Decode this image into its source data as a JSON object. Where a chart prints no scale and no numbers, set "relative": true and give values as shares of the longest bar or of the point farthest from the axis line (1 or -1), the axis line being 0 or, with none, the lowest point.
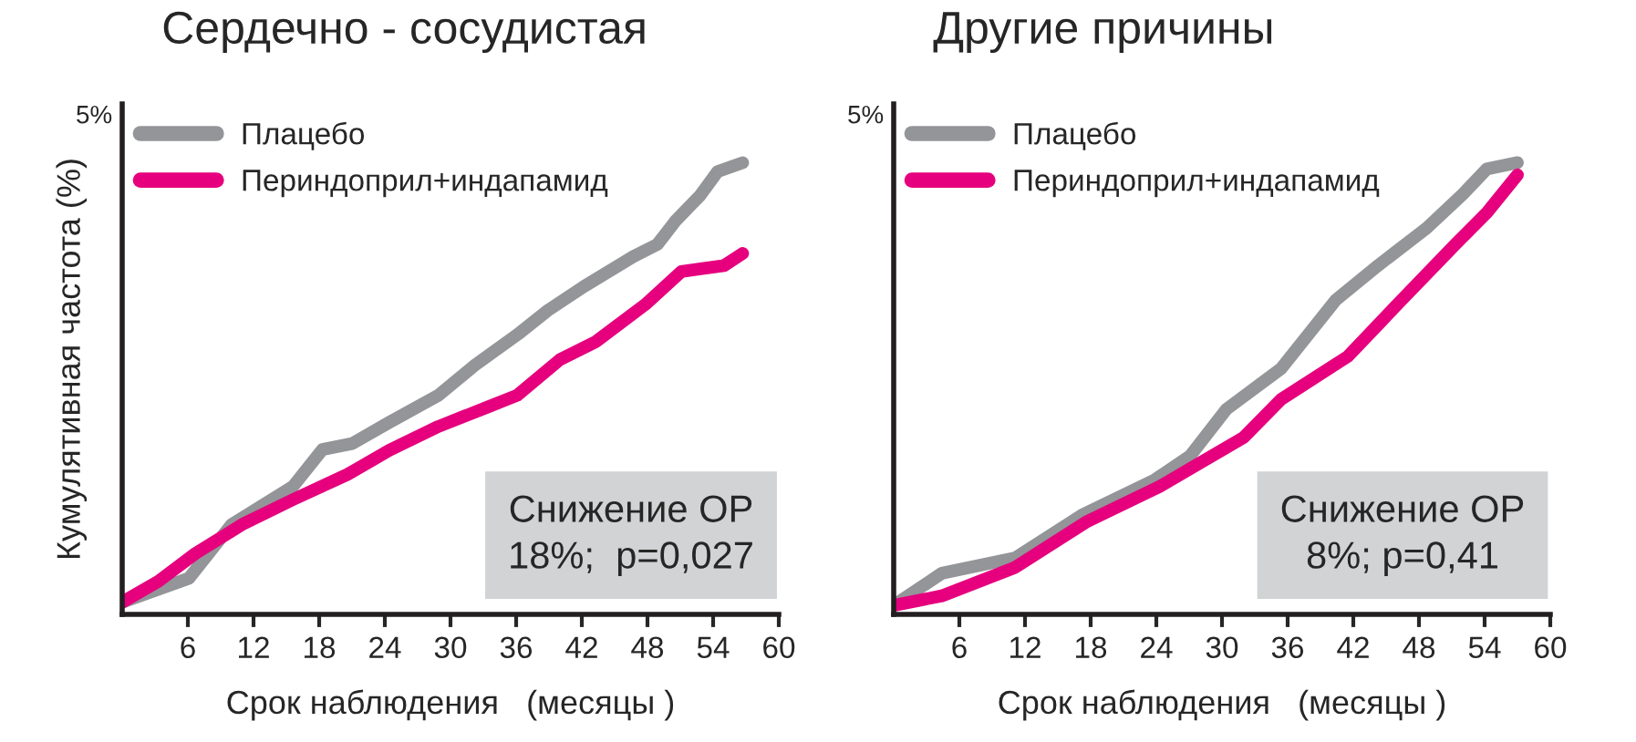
{
  "chart_data": [
    {
      "type": "line",
      "relative": true,
      "title": "Сердечно - сосудистая",
      "xlabel": "Срок наблюдения   (месяцы )",
      "ylabel": "Кумулятивная частота (%)",
      "xlim": [
        0,
        60
      ],
      "xticks": [
        6,
        12,
        18,
        24,
        30,
        36,
        42,
        48,
        54,
        60
      ],
      "legend": "top left",
      "grid": false,
      "marker": "none",
      "line_style": "solid",
      "annotations": [
        "5%",
        "Снижение ОР\n18%;  p=0,027"
      ],
      "series": [
        {
          "name": "Плацебо",
          "color": "#939598",
          "x": [
            0,
            6.1,
            10,
            15.6,
            18.3,
            21,
            24.4,
            28.9,
            32.2,
            36.1,
            38.9,
            42.2,
            46.7,
            48.9,
            50.6,
            52.8,
            54.4,
            56.7
          ],
          "values": [
            0.027,
            0.08,
            0.199,
            0.283,
            0.365,
            0.378,
            0.425,
            0.485,
            0.551,
            0.619,
            0.673,
            0.726,
            0.792,
            0.819,
            0.872,
            0.927,
            0.98,
            1
          ]
        },
        {
          "name": "Периндоприл+индапамид",
          "color": "#e6007e",
          "x": [
            0,
            3.3,
            6.7,
            11.1,
            15.6,
            20.6,
            24.4,
            28.9,
            33.3,
            36.1,
            40,
            43.3,
            47.8,
            51.1,
            55,
            56.7
          ],
          "values": [
            0.027,
            0.073,
            0.135,
            0.201,
            0.254,
            0.31,
            0.363,
            0.416,
            0.458,
            0.485,
            0.564,
            0.604,
            0.686,
            0.759,
            0.772,
            0.799
          ]
        }
      ]
    },
    {
      "type": "line",
      "relative": true,
      "title": "Другие причины",
      "xlabel": "Срок наблюдения   (месяцы )",
      "xlim": [
        0,
        60
      ],
      "xticks": [
        6,
        12,
        18,
        24,
        30,
        36,
        42,
        48,
        54,
        60
      ],
      "legend": "top left",
      "grid": false,
      "marker": "none",
      "line_style": "solid",
      "annotations": [
        "5%",
        "Снижение ОР\n8%; p=0,41"
      ],
      "series": [
        {
          "name": "Плацебо",
          "color": "#939598",
          "x": [
            0,
            4.4,
            11.1,
            17.2,
            23.8,
            27.1,
            30.4,
            35.4,
            40.4,
            44.3,
            48.7,
            52,
            54.2,
            57
          ],
          "values": [
            0.02,
            0.091,
            0.125,
            0.22,
            0.297,
            0.351,
            0.454,
            0.544,
            0.696,
            0.773,
            0.855,
            0.93,
            0.986,
            1
          ]
        },
        {
          "name": "Периндоприл+индапамид",
          "color": "#e6007e",
          "x": [
            0,
            4.4,
            11.1,
            17.7,
            24.3,
            32,
            35.4,
            41.5,
            45.9,
            51.4,
            54.2,
            57
          ],
          "values": [
            0.02,
            0.041,
            0.104,
            0.206,
            0.283,
            0.392,
            0.476,
            0.571,
            0.683,
            0.821,
            0.889,
            0.973
          ]
        }
      ]
    }
  ]
}
